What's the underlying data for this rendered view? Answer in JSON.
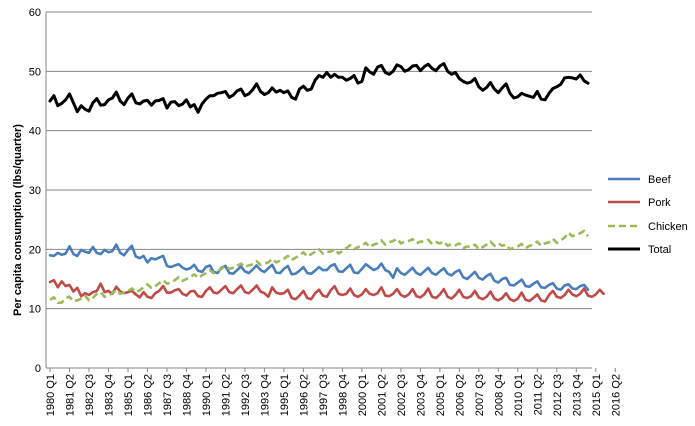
{
  "chart_data": {
    "type": "line",
    "title": "",
    "xlabel": "",
    "ylabel": "Per capita consumption (lbs/quarter)",
    "ylim": [
      0,
      60
    ],
    "yticks": [
      0,
      10,
      20,
      30,
      40,
      50,
      60
    ],
    "grid": "horizontal",
    "legend_position": "right",
    "x_tick_labels": [
      "1980 Q1",
      "1981 Q2",
      "1982 Q3",
      "1983 Q4",
      "1985 Q1",
      "1986 Q2",
      "1987 Q3",
      "1988 Q4",
      "1990 Q1",
      "1991 Q2",
      "1992 Q3",
      "1993 Q4",
      "1995 Q1",
      "1996 Q2",
      "1997 Q3",
      "1998 Q4",
      "2000 Q1",
      "2001 Q2",
      "2002 Q3",
      "2003 Q4",
      "2005 Q1",
      "2006 Q2",
      "2007 Q3",
      "2008 Q4",
      "2010 Q1",
      "2011 Q2",
      "2012 Q3",
      "2013 Q4",
      "2015 Q1",
      "2016 Q2"
    ],
    "x_start": "1980 Q1",
    "x_end": "2016 Q4",
    "series": [
      {
        "name": "Beef",
        "color": "#4a7ebb",
        "dash": "solid",
        "values": [
          19.0,
          18.9,
          19.4,
          19.1,
          19.3,
          20.5,
          19.2,
          18.9,
          19.9,
          19.6,
          19.4,
          20.4,
          19.4,
          19.2,
          19.9,
          19.5,
          19.7,
          20.8,
          19.4,
          19.0,
          19.9,
          20.6,
          18.8,
          18.5,
          18.9,
          17.8,
          18.5,
          18.3,
          18.6,
          18.9,
          17.2,
          17.0,
          17.3,
          17.5,
          16.9,
          16.6,
          16.8,
          17.4,
          16.4,
          16.2,
          17.0,
          17.3,
          16.2,
          16.0,
          16.9,
          17.2,
          16.0,
          15.9,
          16.5,
          17.1,
          16.3,
          16.0,
          16.6,
          17.3,
          16.5,
          16.2,
          16.8,
          17.4,
          16.1,
          16.0,
          16.7,
          17.2,
          15.8,
          15.9,
          16.4,
          17.0,
          16.0,
          15.9,
          16.4,
          17.0,
          16.5,
          16.5,
          17.2,
          17.5,
          16.3,
          16.2,
          16.8,
          17.4,
          16.1,
          16.0,
          16.7,
          17.5,
          17.0,
          16.5,
          16.8,
          17.6,
          16.5,
          16.2,
          15.2,
          16.8,
          16.0,
          15.7,
          16.3,
          16.9,
          16.0,
          15.7,
          16.3,
          16.9,
          16.0,
          15.7,
          16.3,
          16.8,
          15.9,
          15.6,
          16.2,
          16.5,
          15.3,
          15.0,
          15.6,
          16.2,
          15.2,
          14.9,
          15.5,
          15.9,
          14.7,
          14.4,
          15.0,
          15.2,
          14.0,
          13.9,
          14.4,
          14.9,
          13.8,
          13.7,
          14.2,
          14.6,
          13.6,
          13.5,
          14.0,
          14.3,
          13.4,
          13.2,
          13.9,
          14.1,
          13.4,
          13.3,
          13.8,
          14.0,
          13.2
        ]
      },
      {
        "name": "Pork",
        "color": "#be4b48",
        "dash": "solid",
        "values": [
          14.5,
          14.8,
          13.6,
          14.6,
          13.8,
          14.0,
          12.9,
          13.5,
          12.1,
          12.6,
          12.3,
          12.8,
          13.0,
          14.2,
          12.8,
          13.0,
          12.5,
          13.7,
          12.9,
          12.6,
          12.8,
          13.0,
          12.4,
          11.9,
          12.8,
          12.0,
          11.8,
          12.6,
          13.0,
          13.8,
          12.7,
          12.7,
          13.1,
          13.3,
          12.5,
          12.2,
          12.9,
          13.0,
          12.1,
          12.0,
          13.0,
          13.6,
          12.7,
          12.6,
          13.2,
          13.8,
          12.8,
          12.6,
          13.3,
          13.9,
          12.8,
          12.6,
          13.2,
          13.9,
          12.9,
          12.6,
          12.0,
          13.6,
          12.7,
          12.5,
          12.6,
          13.2,
          11.8,
          11.6,
          12.2,
          13.0,
          11.8,
          11.6,
          12.6,
          13.2,
          12.2,
          12.0,
          13.1,
          13.8,
          12.5,
          12.3,
          12.5,
          13.4,
          12.3,
          12.0,
          12.4,
          13.3,
          12.5,
          12.3,
          12.6,
          13.6,
          12.2,
          12.1,
          12.5,
          13.3,
          12.3,
          12.0,
          12.4,
          13.3,
          12.1,
          11.9,
          12.4,
          13.4,
          12.0,
          11.8,
          12.4,
          13.3,
          12.0,
          11.7,
          12.3,
          13.2,
          12.0,
          11.8,
          12.1,
          13.0,
          11.9,
          11.6,
          12.0,
          12.9,
          11.7,
          11.4,
          11.8,
          12.6,
          11.6,
          11.3,
          11.7,
          12.7,
          11.5,
          11.3,
          11.8,
          12.4,
          11.4,
          11.2,
          12.3,
          13.0,
          12.0,
          11.8,
          12.3,
          13.2,
          12.4,
          12.1,
          12.5,
          13.4,
          12.2,
          12.0,
          12.4,
          13.2,
          12.5
        ]
      },
      {
        "name": "Chicken",
        "color": "#9bbb59",
        "dash": "dashed",
        "values": [
          11.5,
          11.9,
          11.0,
          11.0,
          11.8,
          12.0,
          11.2,
          11.4,
          11.7,
          12.2,
          11.4,
          11.8,
          12.5,
          12.8,
          12.0,
          12.2,
          12.6,
          13.1,
          12.5,
          12.7,
          13.0,
          13.4,
          12.8,
          13.1,
          13.6,
          14.1,
          13.5,
          13.8,
          14.3,
          14.8,
          14.2,
          14.4,
          14.8,
          15.3,
          14.7,
          15.0,
          15.3,
          15.8,
          15.2,
          15.6,
          16.0,
          16.5,
          16.0,
          16.3,
          16.7,
          17.2,
          16.7,
          16.9,
          17.2,
          17.6,
          17.0,
          17.3,
          17.5,
          18.0,
          17.4,
          17.6,
          17.8,
          18.4,
          17.8,
          18.1,
          18.4,
          18.9,
          18.2,
          18.6,
          19.0,
          19.5,
          18.8,
          19.2,
          19.6,
          20.0,
          19.3,
          19.6,
          19.6,
          20.0,
          19.3,
          19.7,
          20.2,
          20.7,
          20.0,
          20.4,
          20.6,
          21.1,
          20.4,
          20.8,
          21.0,
          21.5,
          20.8,
          21.2,
          21.4,
          21.8,
          21.0,
          21.3,
          21.4,
          21.7,
          21.0,
          21.3,
          21.3,
          21.6,
          20.9,
          21.2,
          21.0,
          21.3,
          20.6,
          20.9,
          20.7,
          21.0,
          20.2,
          20.5,
          20.4,
          20.8,
          20.0,
          20.4,
          20.8,
          21.3,
          20.6,
          21.0,
          20.6,
          20.8,
          20.0,
          20.3,
          20.5,
          20.9,
          20.2,
          20.6,
          20.8,
          21.3,
          20.6,
          21.0,
          21.2,
          21.8,
          21.1,
          21.5,
          22.0,
          22.8,
          22.2,
          22.5,
          22.7,
          23.1,
          22.2
        ]
      },
      {
        "name": "Total",
        "color": "#000000",
        "dash": "solid",
        "values": [
          45.0,
          45.9,
          44.2,
          44.6,
          45.2,
          46.2,
          44.7,
          43.2,
          44.2,
          43.6,
          43.3,
          44.7,
          45.4,
          44.3,
          44.4,
          45.2,
          45.5,
          46.5,
          45.0,
          44.4,
          45.5,
          46.2,
          44.7,
          44.5,
          45.0,
          45.1,
          44.3,
          45.0,
          45.1,
          45.4,
          43.8,
          44.8,
          44.9,
          44.2,
          44.5,
          45.2,
          44.0,
          44.4,
          43.1,
          44.5,
          45.3,
          45.9,
          45.9,
          46.3,
          46.4,
          46.6,
          45.6,
          46.0,
          46.7,
          47.0,
          45.9,
          46.2,
          46.9,
          47.9,
          46.6,
          46.1,
          46.4,
          47.2,
          46.5,
          46.8,
          46.4,
          46.7,
          45.6,
          45.3,
          47.0,
          47.5,
          46.8,
          47.0,
          48.5,
          49.3,
          49.0,
          49.8,
          49.0,
          49.5,
          49.0,
          49.0,
          48.5,
          48.8,
          49.3,
          48.0,
          48.3,
          50.6,
          49.9,
          49.5,
          50.7,
          51.0,
          49.8,
          49.5,
          50.0,
          51.1,
          50.8,
          50.0,
          50.3,
          50.9,
          51.0,
          50.1,
          50.8,
          51.2,
          50.5,
          50.1,
          50.9,
          51.3,
          50.0,
          49.5,
          49.8,
          48.8,
          48.3,
          48.0,
          48.2,
          48.8,
          47.4,
          46.8,
          47.3,
          48.1,
          47.0,
          46.4,
          47.2,
          47.9,
          46.3,
          45.5,
          45.7,
          46.3,
          46.0,
          45.8,
          45.6,
          46.6,
          45.3,
          45.2,
          46.3,
          47.1,
          47.4,
          47.8,
          48.9,
          49.0,
          48.9,
          48.7,
          49.4,
          48.4,
          48.0
        ]
      }
    ]
  }
}
